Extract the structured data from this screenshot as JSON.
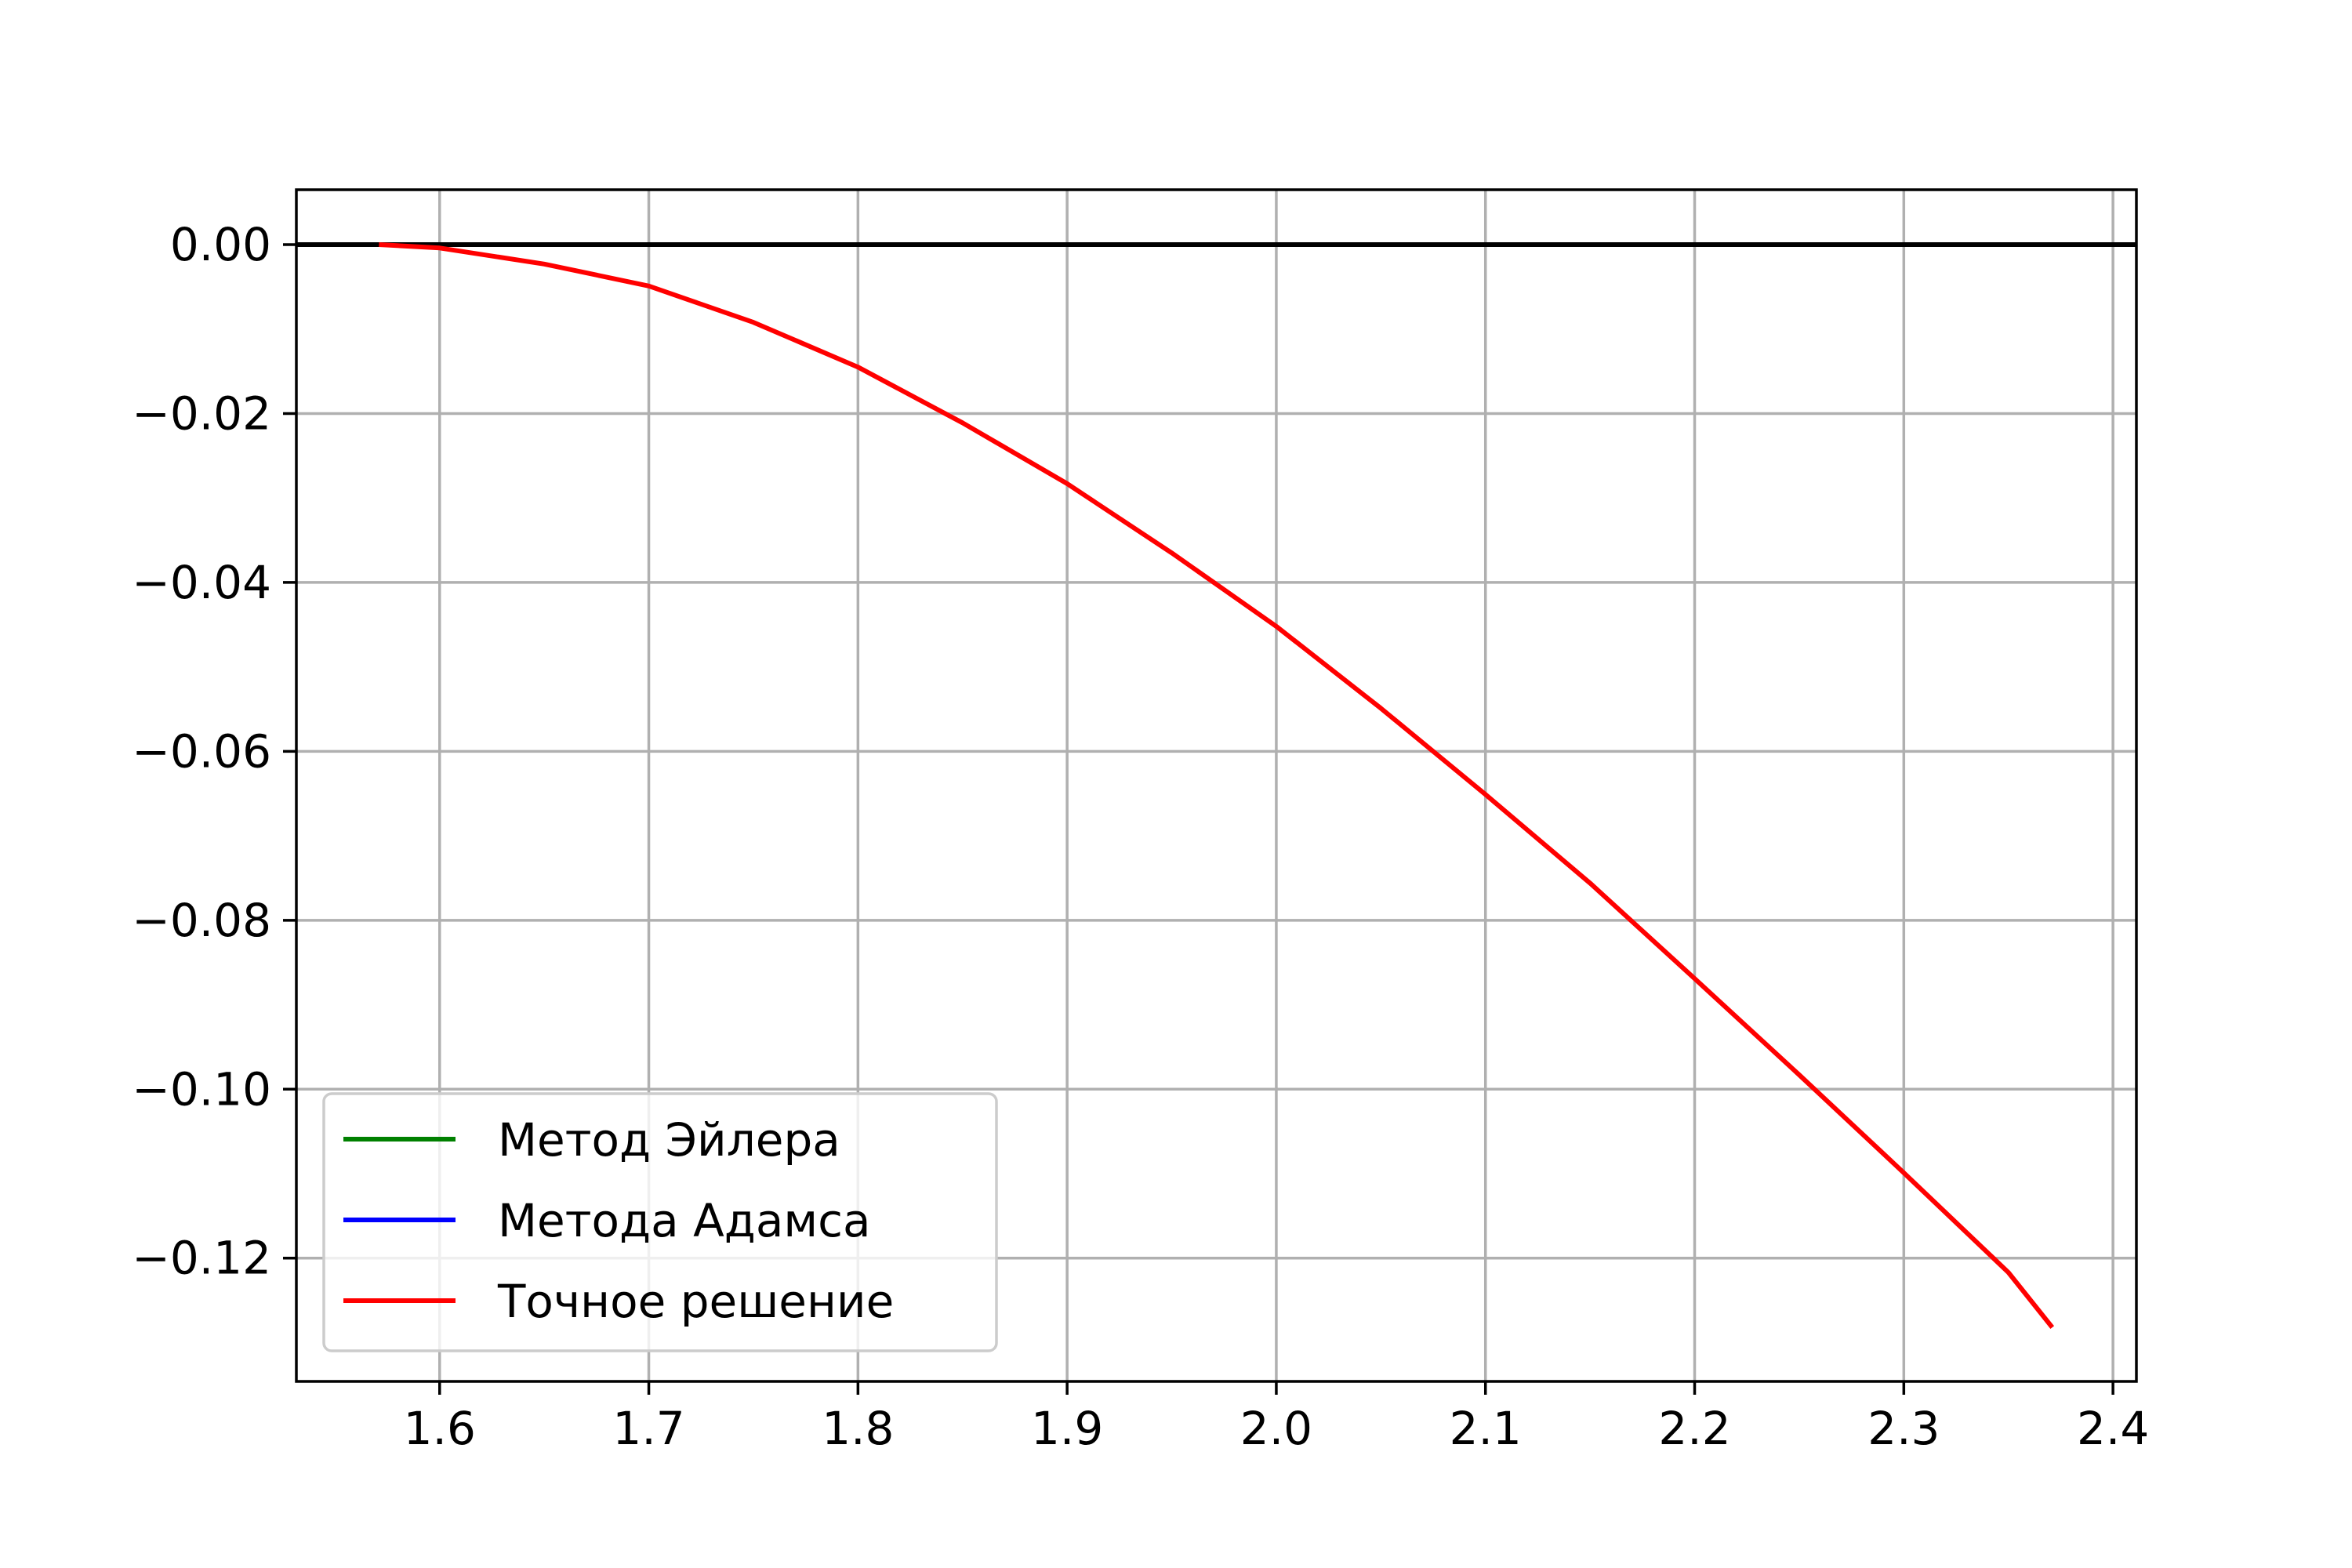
{
  "chart_data": {
    "type": "line",
    "title": "",
    "xlabel": "",
    "ylabel": "",
    "xlim": [
      1.5315,
      2.4112
    ],
    "ylim": [
      -0.1346,
      0.0065
    ],
    "grid": true,
    "legend_position": "lower-left",
    "x_ticks": [
      {
        "value": 1.6,
        "label": "1.6"
      },
      {
        "value": 1.7,
        "label": "1.7"
      },
      {
        "value": 1.8,
        "label": "1.8"
      },
      {
        "value": 1.9,
        "label": "1.9"
      },
      {
        "value": 2.0,
        "label": "2.0"
      },
      {
        "value": 2.1,
        "label": "2.1"
      },
      {
        "value": 2.2,
        "label": "2.2"
      },
      {
        "value": 2.3,
        "label": "2.3"
      },
      {
        "value": 2.4,
        "label": "2.4"
      }
    ],
    "y_ticks": [
      {
        "value": 0.0,
        "label": "0.00"
      },
      {
        "value": -0.02,
        "label": "−0.02"
      },
      {
        "value": -0.04,
        "label": "−0.04"
      },
      {
        "value": -0.06,
        "label": "−0.06"
      },
      {
        "value": -0.08,
        "label": "−0.08"
      },
      {
        "value": -0.1,
        "label": "−0.10"
      },
      {
        "value": -0.12,
        "label": "−0.12"
      }
    ],
    "reference_line": {
      "y": 0.0,
      "color": "#000000"
    },
    "series": [
      {
        "name": "Метод Эйлера",
        "color": "#008000",
        "x": [],
        "y": []
      },
      {
        "name": "Метода Адамса",
        "color": "#0000ff",
        "x": [],
        "y": []
      },
      {
        "name": "Точное решение",
        "color": "#ff0000",
        "x": [
          1.571,
          1.6,
          1.65,
          1.7,
          1.75,
          1.8,
          1.85,
          1.9,
          1.95,
          2.0,
          2.05,
          2.1,
          2.15,
          2.2,
          2.25,
          2.3,
          2.35,
          2.371
        ],
        "y": [
          0.0,
          -0.0004,
          -0.0023,
          -0.0049,
          -0.0092,
          -0.0145,
          -0.0211,
          -0.0283,
          -0.0365,
          -0.0452,
          -0.0549,
          -0.0651,
          -0.0756,
          -0.0869,
          -0.0983,
          -0.1099,
          -0.1217,
          -0.1282
        ]
      }
    ]
  }
}
